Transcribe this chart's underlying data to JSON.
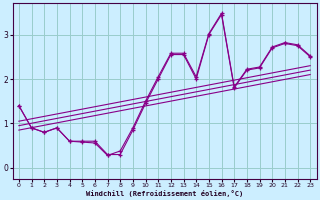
{
  "bg_color": "#cceeff",
  "line_color": "#880088",
  "grid_color": "#99cccc",
  "xlim": [
    -0.5,
    23.5
  ],
  "ylim": [
    -0.25,
    3.7
  ],
  "yticks": [
    0,
    1,
    2,
    3
  ],
  "xticks": [
    0,
    1,
    2,
    3,
    4,
    5,
    6,
    7,
    8,
    9,
    10,
    11,
    12,
    13,
    14,
    15,
    16,
    17,
    18,
    19,
    20,
    21,
    22,
    23
  ],
  "xlabel": "Windchill (Refroidissement éolien,°C)",
  "series1_x": [
    0,
    1,
    2,
    3,
    4,
    5,
    6,
    7,
    8,
    9,
    10,
    11,
    12,
    13,
    14,
    15,
    16,
    17,
    18,
    19,
    20,
    21,
    22,
    23
  ],
  "series1_y": [
    1.4,
    0.9,
    0.8,
    0.9,
    0.6,
    0.6,
    0.6,
    0.3,
    0.3,
    0.85,
    1.45,
    2.0,
    2.55,
    2.55,
    2.0,
    3.0,
    3.45,
    1.8,
    2.2,
    2.25,
    2.7,
    2.8,
    2.75,
    2.5
  ],
  "series2_x": [
    0,
    1,
    2,
    3,
    4,
    5,
    6,
    7,
    8,
    9,
    10,
    11,
    12,
    13,
    14,
    15,
    16,
    17,
    18,
    19,
    20,
    21,
    22,
    23
  ],
  "series2_y": [
    1.4,
    0.9,
    0.8,
    0.9,
    0.6,
    0.58,
    0.56,
    0.28,
    0.38,
    0.9,
    1.5,
    2.05,
    2.58,
    2.58,
    2.05,
    3.02,
    3.48,
    1.82,
    2.22,
    2.27,
    2.72,
    2.82,
    2.77,
    2.52
  ],
  "line1_x": [
    0,
    23
  ],
  "line1_y": [
    0.85,
    2.1
  ],
  "line2_x": [
    0,
    23
  ],
  "line2_y": [
    0.95,
    2.2
  ],
  "line3_x": [
    0,
    23
  ],
  "line3_y": [
    1.05,
    2.3
  ]
}
